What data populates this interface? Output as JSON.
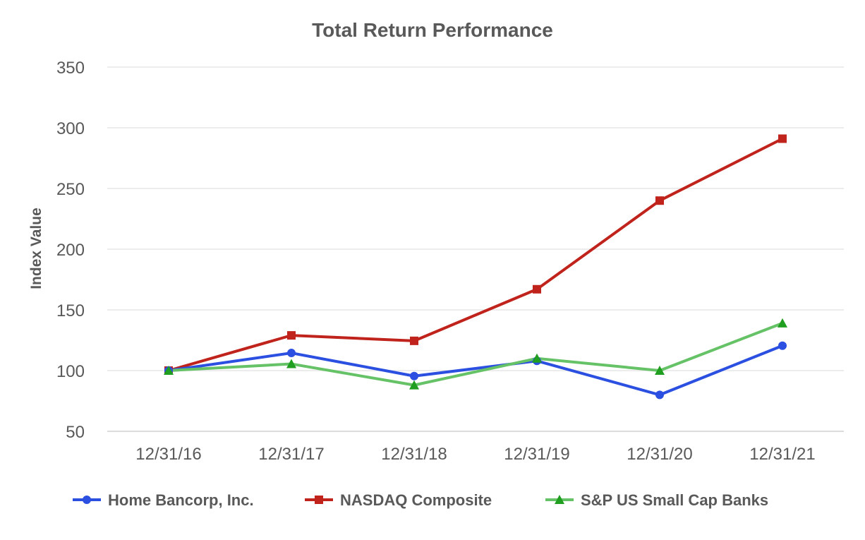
{
  "chart_data": {
    "type": "line",
    "title": "Total Return Performance",
    "xlabel": "",
    "ylabel": "Index Value",
    "categories": [
      "12/31/16",
      "12/31/17",
      "12/31/18",
      "12/31/19",
      "12/31/20",
      "12/31/21"
    ],
    "y_ticks": [
      "350",
      "300",
      "250",
      "200",
      "150",
      "100",
      "50"
    ],
    "ylim": [
      50,
      350
    ],
    "grid": true,
    "legend_position": "bottom",
    "series": [
      {
        "name": "Home Bancorp, Inc.",
        "color": "#2b4fe0",
        "marker": "circle",
        "values": [
          100,
          114.5,
          95.5,
          108,
          80,
          120.5
        ]
      },
      {
        "name": "NASDAQ Composite",
        "color": "#c0231b",
        "marker": "square",
        "values": [
          100,
          129,
          124.5,
          167,
          240,
          291
        ]
      },
      {
        "name": "S&P US Small Cap Banks",
        "color": "#66c266",
        "marker": "triangle",
        "marker_color": "#1f9e1f",
        "values": [
          100,
          105.5,
          88,
          110,
          100,
          139
        ]
      }
    ]
  }
}
